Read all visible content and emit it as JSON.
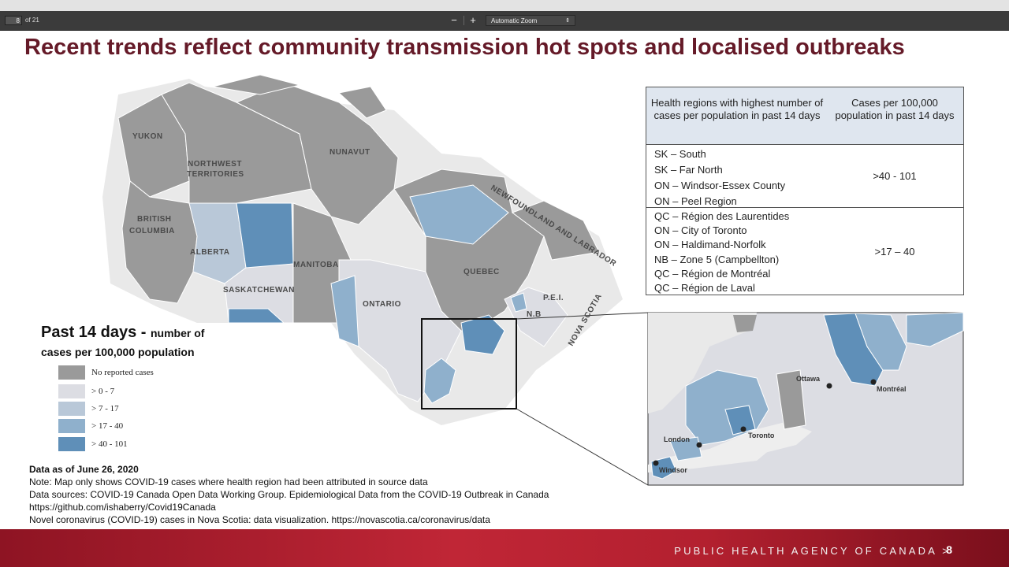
{
  "viewer": {
    "page_number": "8",
    "page_count_label": "of 21",
    "zoom_out": "−",
    "zoom_in": "+",
    "zoom_value": "Automatic Zoom",
    "zoom_arrow": "⇕"
  },
  "slide": {
    "title": "Recent trends reflect community transmission hot spots and localised outbreaks",
    "map_labels": {
      "yukon": "YUKON",
      "nwt_1": "NORTHWEST",
      "nwt_2": "TERRITORIES",
      "nunavut": "NUNAVUT",
      "bc_1": "BRITISH",
      "bc_2": "COLUMBIA",
      "alberta": "ALBERTA",
      "manitoba": "MANITOBA",
      "saskatchewan": "SASKATCHEWAN",
      "ontario": "ONTARIO",
      "quebec": "QUEBEC",
      "nl": "NEWFOUNDLAND AND LABRADOR",
      "pei": "P.E.I.",
      "nb": "N.B",
      "ns": "NOVA SCOTIA"
    },
    "inset_cities": {
      "ottawa": "Ottawa",
      "montreal": "Montréal",
      "toronto": "Toronto",
      "london": "London",
      "windsor": "Windsor"
    },
    "table": {
      "header_col1": "Health regions with highest number of cases per population in past 14 days",
      "header_col2": "Cases per 100,000 population in past 14 days",
      "groups": [
        {
          "regions": [
            "SK – South",
            "SK – Far North",
            "ON – Windsor-Essex County",
            "ON – Peel Region"
          ],
          "value": ">40 - 101"
        },
        {
          "regions": [
            "QC – Région des Laurentides",
            "ON – City of Toronto",
            "ON – Haldimand-Norfolk",
            "NB – Zone 5 (Campbellton)",
            "QC – Région de Montréal",
            "QC – Région de Laval"
          ],
          "value": ">17 – 40"
        }
      ]
    },
    "legend": {
      "title_big": "Past 14 days - ",
      "title_small": "number of",
      "subtitle": "cases per 100,000 population",
      "items": [
        {
          "label": "No reported cases",
          "color": "#9a9a9a"
        },
        {
          "label": "> 0 - 7",
          "color": "#dcdde3"
        },
        {
          "label": "> 7 - 17",
          "color": "#b9c8d8"
        },
        {
          "label": "> 17 - 40",
          "color": "#8fb0cc"
        },
        {
          "label": "> 40 - 101",
          "color": "#5f8fb8"
        }
      ]
    },
    "notes": {
      "data_as_of": "Data as of June 26, 2020",
      "lines": [
        "Note: Map only shows COVID-19 cases where health region had been attributed in source data",
        "Data sources: COVID-19 Canada Open Data Working Group. Epidemiological Data from the COVID-19 Outbreak in Canada",
        "https://github.com/ishaberry/Covid19Canada",
        "Novel coronavirus (COVID-19) cases in Nova Scotia: data visualization. https://novascotia.ca/coronavirus/data"
      ]
    },
    "footer": {
      "agency": "PUBLIC HEALTH AGENCY OF CANADA  >",
      "page": "8"
    }
  }
}
